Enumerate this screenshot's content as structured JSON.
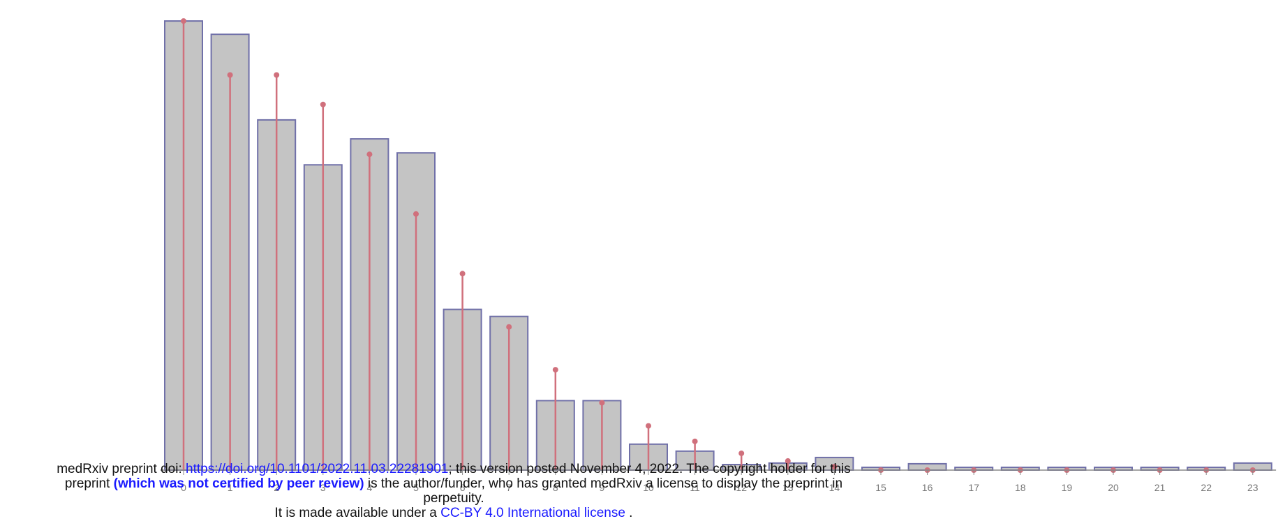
{
  "chart_data": {
    "type": "bar",
    "categories": [
      "0",
      "1",
      "2",
      "3",
      "4",
      "5",
      "6",
      "7",
      "8",
      "9",
      "10",
      "11",
      "12",
      "13",
      "14",
      "15",
      "16",
      "17",
      "18",
      "19",
      "20",
      "21",
      "22",
      "23"
    ],
    "series": [
      {
        "values": [
          640,
          621,
          499,
          435,
          472,
          452,
          229,
          219,
          99,
          99,
          37,
          27,
          8,
          10,
          18,
          0,
          9,
          0,
          0,
          0,
          0,
          0,
          0,
          10
        ]
      },
      {
        "values": [
          640,
          563,
          563,
          521,
          450,
          365,
          280,
          204,
          143,
          96,
          63,
          41,
          24,
          13,
          5,
          0,
          0,
          0,
          0,
          0,
          0,
          0,
          0,
          0
        ]
      }
    ],
    "ylim": [
      0,
      650
    ],
    "grid": false,
    "colors": {
      "bar_fill": "#c4c4c4",
      "bar_stroke": "#7070a8",
      "stem": "#d0707c",
      "axis": "#888888"
    }
  },
  "notice": {
    "line1_prefix": "medRxiv preprint doi: ",
    "doi_link": "https://doi.org/10.1101/2022.11.03.22281901",
    "line1_suffix": "; this version posted November 4, 2022. The copyright holder for this",
    "line2_prefix": "preprint ",
    "line2_bold": "(which was not certified by peer review)",
    "line2_suffix": " is the author/funder, who has granted medRxiv a license to display the preprint in",
    "line3": "perpetuity.",
    "line4_prefix": "It is made available under a ",
    "license_link": "CC-BY 4.0 International license",
    "line4_suffix": " ."
  }
}
